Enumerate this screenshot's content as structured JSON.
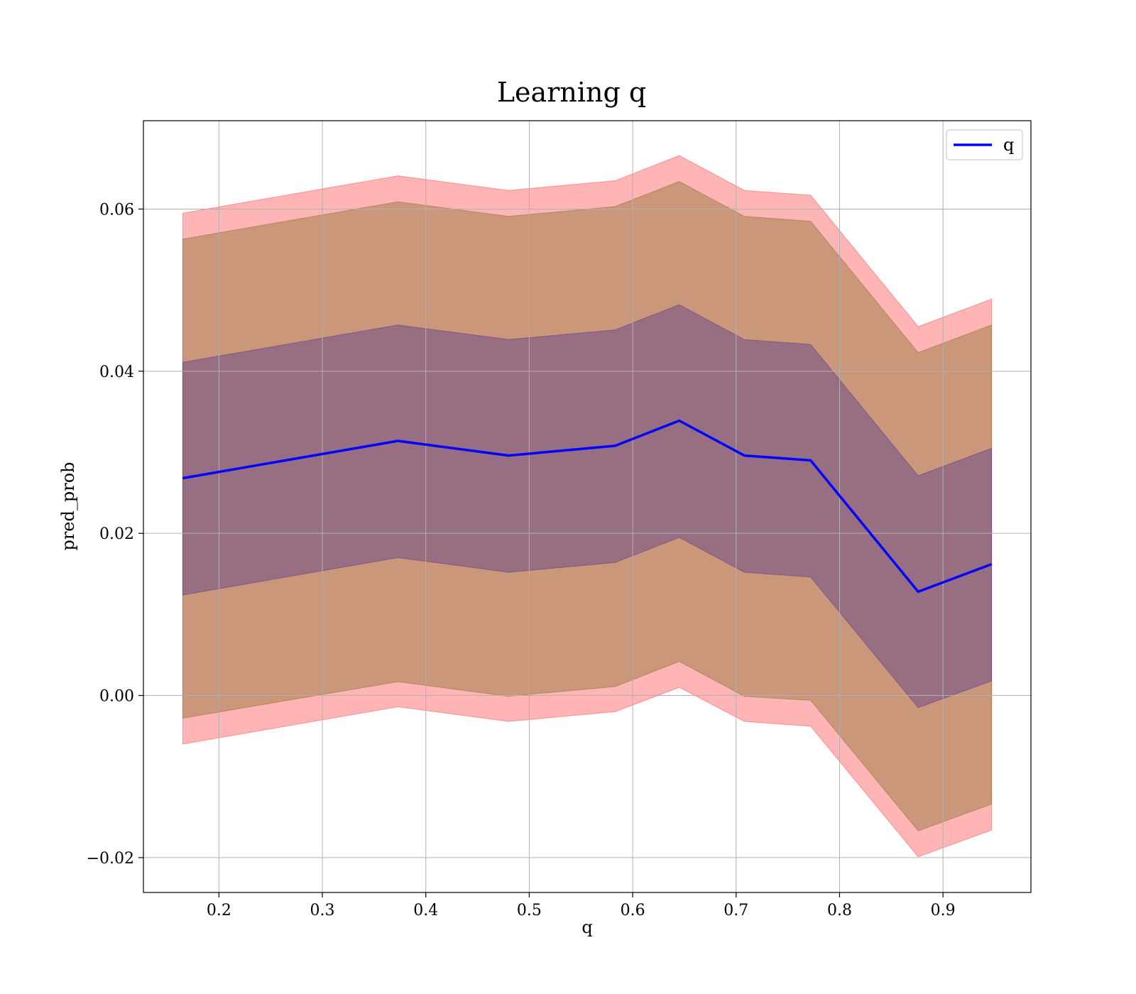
{
  "chart_data": {
    "type": "line",
    "title": "Learning q",
    "xlabel": "q",
    "ylabel": "pred_prob",
    "xlim": [
      0.127,
      0.985
    ],
    "ylim": [
      -0.0243,
      0.0709
    ],
    "grid": true,
    "legend_position": "top-right",
    "x": [
      0.165,
      0.373,
      0.48,
      0.583,
      0.645,
      0.708,
      0.772,
      0.876,
      0.947
    ],
    "x_ticks": [
      {
        "value": 0.2,
        "label": "0.2"
      },
      {
        "value": 0.3,
        "label": "0.3"
      },
      {
        "value": 0.4,
        "label": "0.4"
      },
      {
        "value": 0.5,
        "label": "0.5"
      },
      {
        "value": 0.6,
        "label": "0.6"
      },
      {
        "value": 0.7,
        "label": "0.7"
      },
      {
        "value": 0.8,
        "label": "0.8"
      },
      {
        "value": 0.9,
        "label": "0.9"
      }
    ],
    "y_ticks": [
      {
        "value": -0.02,
        "label": "−0.02"
      },
      {
        "value": 0.0,
        "label": "0.00"
      },
      {
        "value": 0.02,
        "label": "0.02"
      },
      {
        "value": 0.04,
        "label": "0.04"
      },
      {
        "value": 0.06,
        "label": "0.06"
      }
    ],
    "series": [
      {
        "name": "q",
        "color": "#0000ff",
        "values": [
          0.0268,
          0.0314,
          0.0296,
          0.0308,
          0.0339,
          0.0296,
          0.029,
          0.0128,
          0.0162
        ]
      }
    ],
    "bands": [
      {
        "color": "#ff5a5a",
        "lower": [
          -0.006,
          -0.0014,
          -0.0032,
          -0.002,
          0.001,
          -0.0032,
          -0.0038,
          -0.0199,
          -0.0166
        ],
        "upper": [
          0.0595,
          0.0641,
          0.0623,
          0.0635,
          0.0666,
          0.0623,
          0.0617,
          0.0455,
          0.0489
        ]
      },
      {
        "color": "#8b7332",
        "lower": [
          -0.0028,
          0.0017,
          -0.0001,
          0.0011,
          0.0042,
          -0.0001,
          -0.0006,
          -0.0167,
          -0.0134
        ],
        "upper": [
          0.0563,
          0.0609,
          0.0591,
          0.0603,
          0.0634,
          0.0591,
          0.0585,
          0.0423,
          0.0457
        ]
      },
      {
        "color": "#5a3c8c",
        "lower": [
          0.0124,
          0.017,
          0.0152,
          0.0164,
          0.0195,
          0.0152,
          0.0146,
          -0.0015,
          0.0018
        ],
        "upper": [
          0.0411,
          0.0457,
          0.0439,
          0.0451,
          0.0482,
          0.0439,
          0.0433,
          0.0271,
          0.0305
        ]
      }
    ]
  }
}
